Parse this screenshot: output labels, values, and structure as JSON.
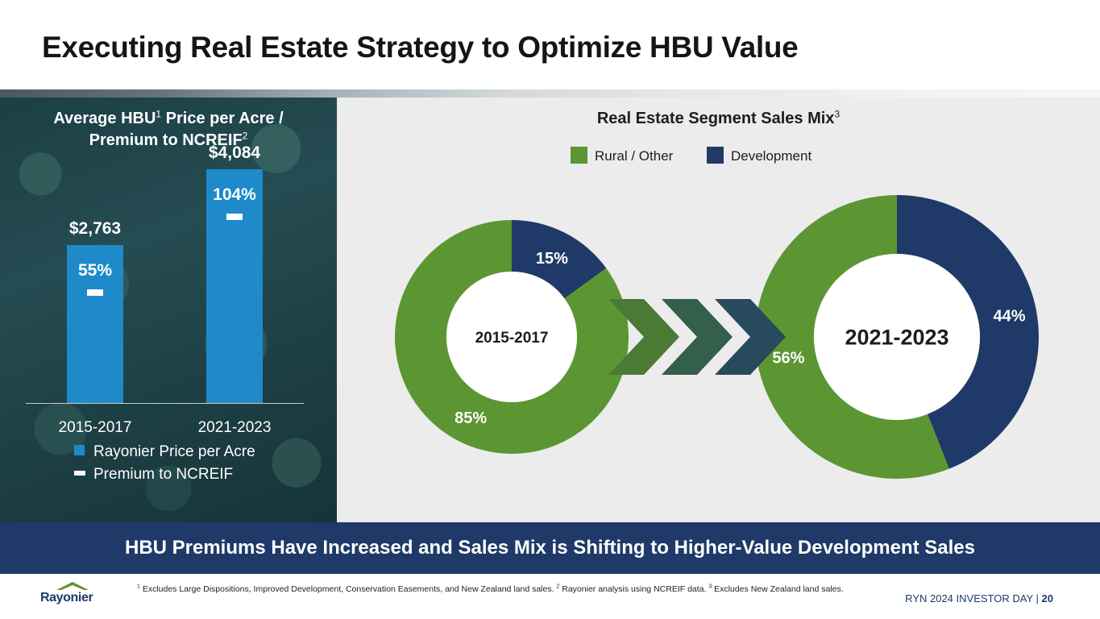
{
  "slide": {
    "title": "Executing Real Estate Strategy to Optimize HBU Value",
    "banner": "HBU Premiums Have Increased and Sales Mix is Shifting to Higher-Value Development Sales",
    "footer_label": "RYN 2024 INVESTOR DAY",
    "footer_separator": "|",
    "page_number": "20",
    "logo_text": "Rayonier"
  },
  "left": {
    "title_part1": "Average HBU",
    "title_sup1": "1",
    "title_part2": " Price per Acre /",
    "title_part3": "Premium to NCREIF",
    "title_sup2": "2",
    "legend_price": "Rayonier Price per Acre",
    "legend_premium": "Premium to NCREIF"
  },
  "right": {
    "title": "Real Estate Segment Sales Mix",
    "title_sup": "3",
    "legend_rural": "Rural / Other",
    "legend_development": "Development"
  },
  "footnotes": {
    "n1": "1",
    "t1": " Excludes Large Dispositions, Improved Development, Conservation Easements, and New Zealand land sales. ",
    "n2": "2",
    "t2": " Rayonier analysis using NCREIF data. ",
    "n3": "3",
    "t3": " Excludes New Zealand land sales."
  },
  "colors": {
    "bar": "#1f8ac9",
    "rural": "#5c9632",
    "development": "#1f3a68",
    "banner": "#1f3a68"
  },
  "chart_data": [
    {
      "type": "bar",
      "categories": [
        "2015-2017",
        "2021-2023"
      ],
      "series": [
        {
          "name": "Rayonier Price per Acre",
          "values": [
            2763,
            4084
          ],
          "labels": [
            "$2,763",
            "$4,084"
          ]
        },
        {
          "name": "Premium to NCREIF",
          "values": [
            55,
            104
          ],
          "labels": [
            "55%",
            "104%"
          ]
        }
      ],
      "title": "Average HBU Price per Acre / Premium to NCREIF",
      "ylim": [
        0,
        4500
      ],
      "grid": false,
      "legend": "bottom"
    },
    {
      "type": "pie",
      "title": "Real Estate Segment Sales Mix",
      "charts": [
        {
          "label": "2015-2017",
          "slices": [
            {
              "name": "Development",
              "value": 15,
              "label": "15%"
            },
            {
              "name": "Rural / Other",
              "value": 85,
              "label": "85%"
            }
          ]
        },
        {
          "label": "2021-2023",
          "slices": [
            {
              "name": "Development",
              "value": 44,
              "label": "44%"
            },
            {
              "name": "Rural / Other",
              "value": 56,
              "label": "56%"
            }
          ]
        }
      ],
      "legend": "top"
    }
  ]
}
